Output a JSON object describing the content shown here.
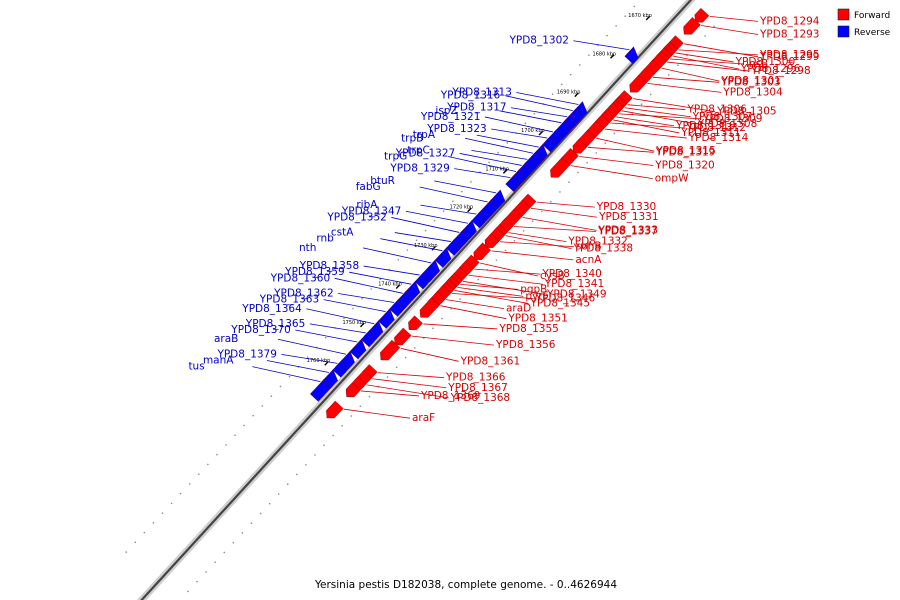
{
  "caption": "Yersinia pestis D182038, complete genome. - 0..4626944",
  "legend": [
    {
      "label": "Forward",
      "color": "#ff0000"
    },
    {
      "label": "Reverse",
      "color": "#0000ff"
    }
  ],
  "ticks": [
    "1670 kbp",
    "1680 kbp",
    "1690 kbp",
    "1700 kbp",
    "1710 kbp",
    "1720 kbp",
    "1730 kbp",
    "1740 kbp",
    "1750 kbp",
    "1760 kbp"
  ],
  "forward_genes": [
    {
      "label": "YPD8_1294",
      "t": 0.015
    },
    {
      "label": "YPD8_1293",
      "t": 0.03
    },
    {
      "label": "YPD8_1299",
      "t": 0.06
    },
    {
      "label": "YPD8_1295",
      "t": 0.07
    },
    {
      "label": "YPD8_1300",
      "t": 0.075
    },
    {
      "label": "YPD8_1296",
      "t": 0.08
    },
    {
      "label": "insB",
      "t": 0.085
    },
    {
      "label": "YPD8_1298",
      "t": 0.09
    },
    {
      "label": "YPD8_1301",
      "t": 0.1
    },
    {
      "label": "YPD8_1303",
      "t": 0.115
    },
    {
      "label": "YPD8_1304",
      "t": 0.125
    },
    {
      "label": "YPD8_1305",
      "t": 0.15
    },
    {
      "label": "YPD8_1306",
      "t": 0.16
    },
    {
      "label": "YPD8_1307",
      "t": 0.165
    },
    {
      "label": "YPD8_1308",
      "t": 0.17
    },
    {
      "label": "YPD8_1309",
      "t": 0.175
    },
    {
      "label": "YPD8_1310",
      "t": 0.18
    },
    {
      "label": "YPD8_1311",
      "t": 0.185
    },
    {
      "label": "YPD8_1312",
      "t": 0.19
    },
    {
      "label": "YPD8_1314",
      "t": 0.2
    },
    {
      "label": "YPD8_1315",
      "t": 0.215
    },
    {
      "label": "YPD8_1319",
      "t": 0.23
    },
    {
      "label": "YPD8_1320",
      "t": 0.245
    },
    {
      "label": "ompW",
      "t": 0.26
    },
    {
      "label": "YPD8_1330",
      "t": 0.32
    },
    {
      "label": "YPD8_1331",
      "t": 0.33
    },
    {
      "label": "YPD8_1333",
      "t": 0.345
    },
    {
      "label": "YPD8_1337",
      "t": 0.36
    },
    {
      "label": "YPD8_1332",
      "t": 0.37
    },
    {
      "label": "YPD8_1338",
      "t": 0.375
    },
    {
      "label": "sohB",
      "t": 0.385
    },
    {
      "label": "acnA",
      "t": 0.4
    },
    {
      "label": "cysB",
      "t": 0.42
    },
    {
      "label": "YPD8_1340",
      "t": 0.43
    },
    {
      "label": "YPD8_1341",
      "t": 0.44
    },
    {
      "label": "YPD8_1349",
      "t": 0.45
    },
    {
      "label": "pgpB",
      "t": 0.455
    },
    {
      "label": "pyrF",
      "t": 0.46
    },
    {
      "label": "YPD8_1345",
      "t": 0.465
    },
    {
      "label": "YPD8_1346",
      "t": 0.47
    },
    {
      "label": "araD",
      "t": 0.48
    },
    {
      "label": "YPD8_1351",
      "t": 0.49
    },
    {
      "label": "YPD8_1355",
      "t": 0.52
    },
    {
      "label": "YPD8_1356",
      "t": 0.54
    },
    {
      "label": "YPD8_1361",
      "t": 0.56
    },
    {
      "label": "YPD8_1366",
      "t": 0.6
    },
    {
      "label": "YPD8_1367",
      "t": 0.61
    },
    {
      "label": "YPD8_1368",
      "t": 0.62
    },
    {
      "label": "YPD8_1369",
      "t": 0.63
    },
    {
      "label": "araF",
      "t": 0.66
    }
  ],
  "reverse_genes": [
    {
      "label": "YPD8_1302",
      "t": 0.11
    },
    {
      "label": "YPD8_1313",
      "t": 0.2
    },
    {
      "label": "YPD8_1316",
      "t": 0.21
    },
    {
      "label": "YPD8_1317",
      "t": 0.22
    },
    {
      "label": "ispZ",
      "t": 0.23
    },
    {
      "label": "YPD8_1321",
      "t": 0.245
    },
    {
      "label": "YPD8_1323",
      "t": 0.255
    },
    {
      "label": "trpA",
      "t": 0.27
    },
    {
      "label": "trpB",
      "t": 0.28
    },
    {
      "label": "trpC",
      "t": 0.29
    },
    {
      "label": "YPD8_1327",
      "t": 0.3
    },
    {
      "label": "trpG",
      "t": 0.31
    },
    {
      "label": "YPD8_1329",
      "t": 0.32
    },
    {
      "label": "btuR",
      "t": 0.345
    },
    {
      "label": "fabG",
      "t": 0.36
    },
    {
      "label": "ribA",
      "t": 0.38
    },
    {
      "label": "YPD8_1347",
      "t": 0.395
    },
    {
      "label": "YPD8_1352",
      "t": 0.41
    },
    {
      "label": "cstA",
      "t": 0.425
    },
    {
      "label": "rnb",
      "t": 0.44
    },
    {
      "label": "nth",
      "t": 0.46
    },
    {
      "label": "YPD8_1358",
      "t": 0.48
    },
    {
      "label": "YPD8_1359",
      "t": 0.495
    },
    {
      "label": "YPD8_1360",
      "t": 0.51
    },
    {
      "label": "YPD8_1362",
      "t": 0.525
    },
    {
      "label": "YPD8_1363",
      "t": 0.54
    },
    {
      "label": "YPD8_1364",
      "t": 0.56
    },
    {
      "label": "YPD8_1365",
      "t": 0.575
    },
    {
      "label": "YPD8_1370",
      "t": 0.59
    },
    {
      "label": "araB",
      "t": 0.61
    },
    {
      "label": "YPD8_1379",
      "t": 0.625
    },
    {
      "label": "manA",
      "t": 0.64
    },
    {
      "label": "tus",
      "t": 0.655
    }
  ]
}
